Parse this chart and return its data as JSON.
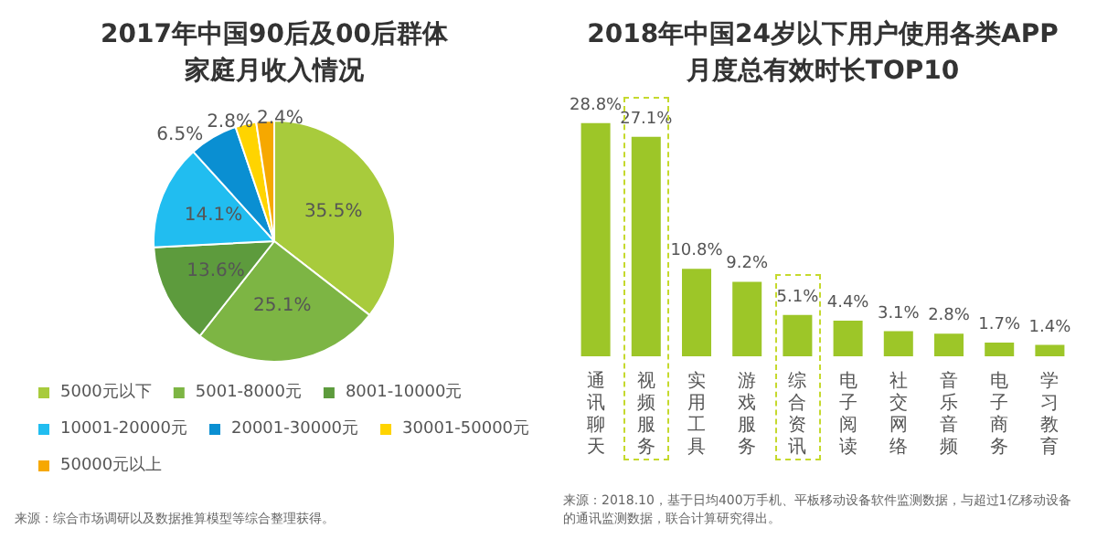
{
  "chart_data": [
    {
      "type": "pie",
      "title": "2017年中国90后及00后群体家庭月收入情况",
      "categories": [
        "5000元以下",
        "5001-8000元",
        "8001-10000元",
        "10001-20000元",
        "20001-30000元",
        "30001-50000元",
        "50000元以上"
      ],
      "values": [
        35.5,
        25.1,
        13.6,
        14.1,
        6.5,
        2.8,
        2.4
      ],
      "colors": [
        "#a8cb3c",
        "#7db544",
        "#5d9b3d",
        "#21bdf0",
        "#0a8fd2",
        "#ffd400",
        "#f6a800"
      ],
      "value_labels": [
        "35.5%",
        "25.1%",
        "13.6%",
        "14.1%",
        "6.5%",
        "2.8%",
        "2.4%"
      ],
      "legend": "bottom",
      "annotations": [
        "来源：综合市场调研以及数据推算模型等综合整理获得。"
      ]
    },
    {
      "type": "bar",
      "title": "2018年中国24岁以下用户使用各类APP月度总有效时长TOP10",
      "categories": [
        "通讯聊天",
        "视频服务",
        "实用工具",
        "游戏服务",
        "综合资讯",
        "电子阅读",
        "社交网络",
        "音乐音频",
        "电子商务",
        "学习教育"
      ],
      "values": [
        28.8,
        27.1,
        10.8,
        9.2,
        5.1,
        4.4,
        3.1,
        2.8,
        1.7,
        1.4
      ],
      "color": "#9dc628",
      "value_labels": [
        "28.8%",
        "27.1%",
        "10.8%",
        "9.2%",
        "5.1%",
        "4.4%",
        "3.1%",
        "2.8%",
        "1.7%",
        "1.4%"
      ],
      "annotations": [
        "来源：2018.10，基于日均400万手机、平板移动设备软件监测数据，与超过1亿移动设备的通讯监测数据，联合计算研究得出。"
      ]
    }
  ]
}
